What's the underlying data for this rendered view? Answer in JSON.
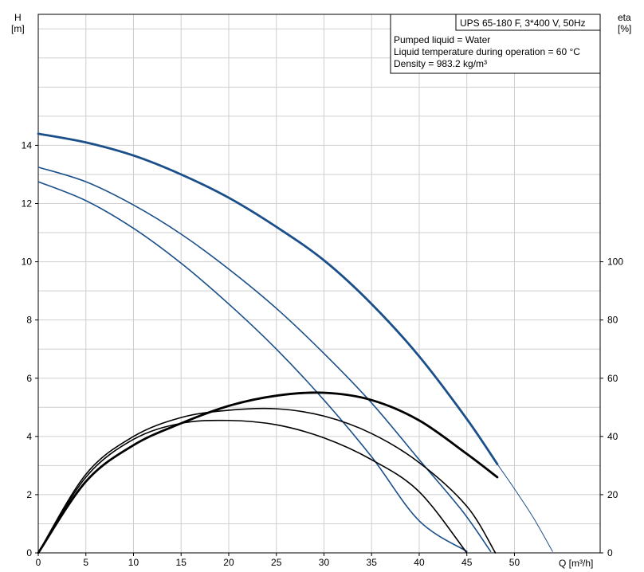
{
  "chart_data": {
    "type": "line",
    "title": "UPS 65-180 F, 3*400 V, 50Hz",
    "info_lines": [
      "Pumped liquid = Water",
      "Liquid temperature during operation = 60 °C",
      "Density = 983.2 kg/m³"
    ],
    "x_axis": {
      "label": "Q [m³/h]",
      "range": [
        0,
        59
      ],
      "ticks": [
        0,
        5,
        10,
        15,
        20,
        25,
        30,
        35,
        40,
        45,
        50
      ]
    },
    "y_left": {
      "label_line1": "H",
      "label_line2": "[m]",
      "range": [
        0,
        18.5
      ],
      "ticks": [
        0,
        2,
        4,
        6,
        8,
        10,
        12,
        14
      ]
    },
    "y_right": {
      "label_line1": "eta",
      "label_line2": "[%]",
      "range": [
        0,
        185
      ],
      "ticks": [
        0,
        20,
        40,
        60,
        80,
        100
      ]
    },
    "grid": true,
    "colors": {
      "head": "#1a4f8a",
      "eta": "#000000",
      "grid": "#cfcfcf"
    },
    "series": [
      {
        "kind": "head",
        "axis": "left",
        "heavy": true,
        "x": [
          0,
          5,
          10,
          15,
          20,
          25,
          30,
          35,
          40,
          45,
          48.2
        ],
        "y": [
          14.4,
          14.1,
          13.65,
          13.0,
          12.2,
          11.2,
          10.05,
          8.55,
          6.75,
          4.6,
          3.05
        ]
      },
      {
        "kind": "head-dotted",
        "axis": "left",
        "heavy": false,
        "x": [
          48.2,
          50,
          52,
          54
        ],
        "y": [
          3.05,
          2.2,
          1.2,
          0.05
        ]
      },
      {
        "kind": "head",
        "axis": "left",
        "heavy": false,
        "x": [
          0,
          5,
          10,
          15,
          20,
          25,
          30,
          35,
          40,
          44.5,
          47.5
        ],
        "y": [
          13.25,
          12.75,
          11.95,
          10.95,
          9.75,
          8.4,
          6.85,
          5.15,
          3.2,
          1.45,
          0.05
        ]
      },
      {
        "kind": "head",
        "axis": "left",
        "heavy": false,
        "x": [
          0,
          5,
          10,
          15,
          20,
          25,
          30,
          35,
          40,
          45
        ],
        "y": [
          12.75,
          12.1,
          11.15,
          9.95,
          8.55,
          7.0,
          5.25,
          3.3,
          1.1,
          0.05
        ]
      },
      {
        "kind": "eta",
        "axis": "right",
        "heavy": true,
        "x": [
          0,
          5,
          10,
          15,
          20,
          25,
          30,
          35,
          40,
          45,
          48.2
        ],
        "y": [
          0,
          24.5,
          37,
          44.5,
          50.5,
          54,
          55,
          52.5,
          45.5,
          34,
          26
        ]
      },
      {
        "kind": "eta",
        "axis": "right",
        "heavy": false,
        "x": [
          0,
          5,
          10,
          15,
          20,
          25,
          30,
          35,
          40,
          45,
          48
        ],
        "y": [
          0,
          27,
          40,
          46.5,
          49,
          49.5,
          47,
          41,
          31,
          16,
          0
        ]
      },
      {
        "kind": "eta",
        "axis": "right",
        "heavy": false,
        "x": [
          0,
          5,
          10,
          15,
          20,
          25,
          30,
          35,
          40,
          45
        ],
        "y": [
          0,
          26,
          39,
          44.5,
          45.5,
          44,
          39.5,
          32,
          21,
          0
        ]
      }
    ]
  }
}
